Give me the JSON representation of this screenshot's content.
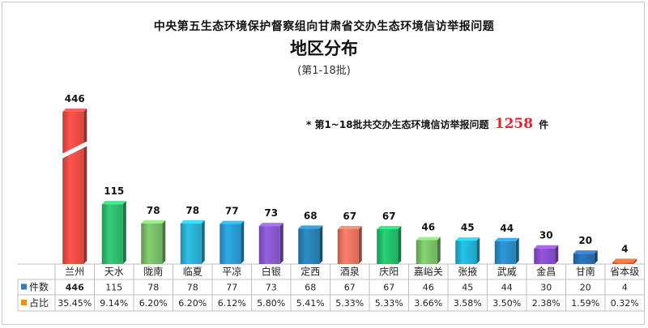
{
  "title": "中央第五生态环境保护督察组向甘肃省交办生态环境信访举报问题",
  "subtitle": "地区分布",
  "batch": "(第1-18批)",
  "note": {
    "prefix": "* 第1~18批共交办生态环境信访举报问题",
    "total": "1258",
    "unit": "件"
  },
  "chart_data": {
    "type": "bar",
    "title": "中央第五生态环境保护督察组向甘肃省交办生态环境信访举报问题",
    "subtitle": "地区分布",
    "categories": [
      "兰州",
      "天水",
      "陇南",
      "临夏",
      "平凉",
      "白银",
      "定西",
      "酒泉",
      "庆阳",
      "嘉峪关",
      "张掖",
      "武威",
      "金昌",
      "甘南",
      "省本级"
    ],
    "series": [
      {
        "name": "件数",
        "values": [
          446,
          115,
          78,
          78,
          77,
          73,
          68,
          67,
          67,
          46,
          45,
          44,
          30,
          20,
          4
        ],
        "colors": [
          "#f04e46",
          "#2fbf71",
          "#7bbf6a",
          "#2bb3d6",
          "#2a9ed6",
          "#8a5ad0",
          "#2a84b8",
          "#f07565",
          "#22c26e",
          "#7cc46a",
          "#22b5d9",
          "#2a8ec8",
          "#8a4fd0",
          "#2a6fb3",
          "#f0643c"
        ]
      },
      {
        "name": "占比",
        "values": [
          "35.45%",
          "9.14%",
          "6.20%",
          "6.20%",
          "6.12%",
          "5.80%",
          "5.41%",
          "5.33%",
          "5.33%",
          "3.66%",
          "3.58%",
          "3.50%",
          "2.38%",
          "1.59%",
          "0.32%"
        ]
      }
    ],
    "value_labels": [
      "446",
      "115",
      "78",
      "78",
      "77",
      "73",
      "68",
      "67",
      "67",
      "46",
      "45",
      "44",
      "30",
      "20",
      "4"
    ],
    "axis_break": true,
    "legend_markers": {
      "件数": "#2f7fb5",
      "占比": "#f08a24"
    }
  }
}
